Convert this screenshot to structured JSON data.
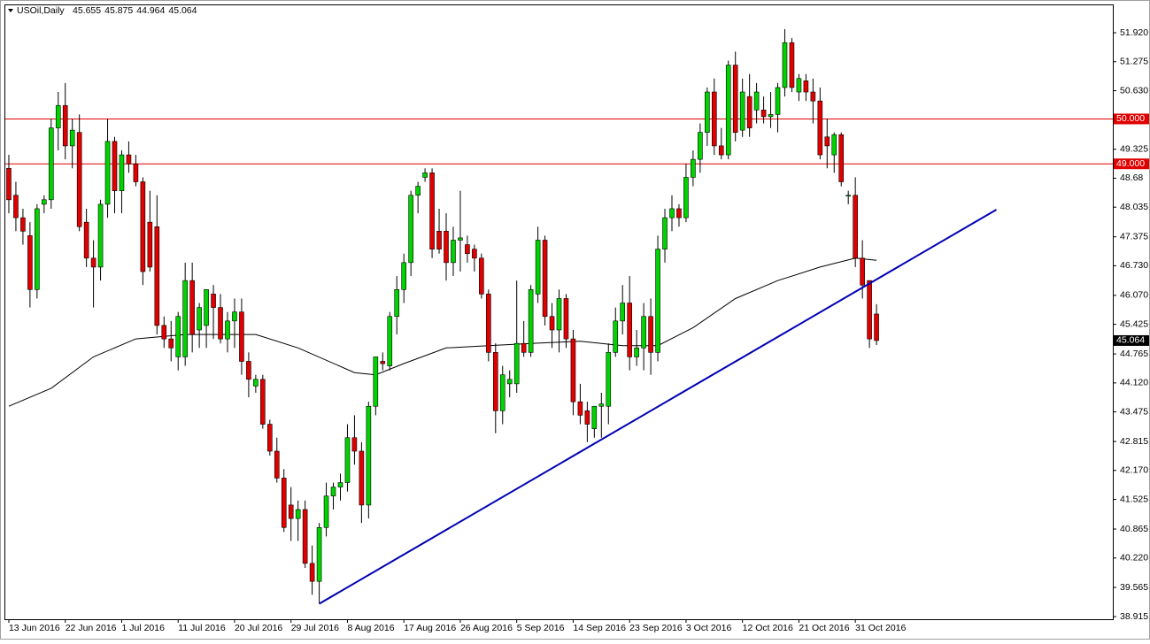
{
  "header": {
    "symbol": "USOil,Daily",
    "values": [
      45.655,
      45.875,
      44.964,
      45.064
    ]
  },
  "chart_data": {
    "type": "candlestick",
    "up_color": "#00d400",
    "down_color": "#e00000",
    "wick_color": "#000000",
    "categories": [
      "13 Jun 2016",
      null,
      null,
      null,
      null,
      null,
      null,
      null,
      "22 Jun 2016",
      null,
      null,
      null,
      null,
      null,
      null,
      null,
      "1 Jul 2016",
      null,
      null,
      null,
      null,
      null,
      null,
      null,
      "11 Jul 2016",
      null,
      null,
      null,
      null,
      null,
      null,
      null,
      "20 Jul 2016",
      null,
      null,
      null,
      null,
      null,
      null,
      null,
      "29 Jul 2016",
      null,
      null,
      null,
      null,
      null,
      null,
      null,
      "8 Aug 2016",
      null,
      null,
      null,
      null,
      null,
      null,
      null,
      "17 Aug 2016",
      null,
      null,
      null,
      null,
      null,
      null,
      null,
      "26 Aug 2016",
      null,
      null,
      null,
      null,
      null,
      null,
      null,
      "5 Sep 2016",
      null,
      null,
      null,
      null,
      null,
      null,
      null,
      "14 Sep 2016",
      null,
      null,
      null,
      null,
      null,
      null,
      null,
      "23 Sep 2016",
      null,
      null,
      null,
      null,
      null,
      null,
      null,
      "3 Oct 2016",
      null,
      null,
      null,
      null,
      null,
      null,
      null,
      "12 Oct 2016",
      null,
      null,
      null,
      null,
      null,
      null,
      null,
      "21 Oct 2016",
      null,
      null,
      null,
      null,
      null,
      null,
      null,
      "31 Oct 2016",
      null,
      null,
      null
    ],
    "ohlc": [
      [
        48.9,
        49.2,
        47.9,
        48.2
      ],
      [
        48.3,
        48.6,
        47.5,
        47.8
      ],
      [
        47.8,
        48.0,
        47.2,
        47.5
      ],
      [
        47.4,
        47.7,
        45.8,
        46.2
      ],
      [
        46.2,
        48.1,
        46.0,
        48.0
      ],
      [
        48.1,
        48.3,
        47.9,
        48.2
      ],
      [
        48.2,
        50.0,
        48.0,
        49.8
      ],
      [
        49.8,
        50.6,
        49.3,
        50.3
      ],
      [
        50.3,
        50.8,
        49.1,
        49.4
      ],
      [
        49.4,
        50.0,
        48.9,
        49.75
      ],
      [
        49.7,
        50.1,
        47.5,
        47.6
      ],
      [
        47.7,
        48.0,
        46.7,
        46.9
      ],
      [
        46.9,
        47.3,
        45.8,
        46.7
      ],
      [
        46.7,
        48.2,
        46.4,
        48.1
      ],
      [
        48.1,
        50.0,
        47.8,
        49.5
      ],
      [
        49.5,
        49.6,
        47.9,
        48.4
      ],
      [
        48.4,
        49.3,
        47.9,
        49.2
      ],
      [
        49.2,
        49.5,
        48.8,
        49.0
      ],
      [
        49.0,
        49.2,
        48.5,
        48.6
      ],
      [
        48.6,
        48.7,
        46.3,
        46.6
      ],
      [
        47.7,
        48.4,
        46.6,
        46.7
      ],
      [
        47.6,
        48.3,
        45.2,
        45.4
      ],
      [
        45.4,
        45.6,
        44.9,
        45.1
      ],
      [
        45.1,
        45.5,
        44.6,
        44.9
      ],
      [
        44.7,
        45.7,
        44.4,
        45.6
      ],
      [
        44.7,
        46.8,
        44.5,
        46.4
      ],
      [
        46.4,
        46.8,
        44.8,
        45.2
      ],
      [
        45.3,
        45.9,
        44.9,
        45.8
      ],
      [
        45.4,
        46.2,
        44.9,
        46.2
      ],
      [
        46.1,
        46.3,
        45.1,
        45.8
      ],
      [
        45.8,
        46.1,
        45.0,
        45.1
      ],
      [
        45.1,
        45.7,
        44.8,
        45.5
      ],
      [
        45.5,
        46.0,
        44.9,
        45.7
      ],
      [
        45.7,
        46.0,
        44.3,
        44.6
      ],
      [
        44.6,
        44.8,
        43.8,
        44.2
      ],
      [
        44.05,
        44.3,
        43.9,
        44.2
      ],
      [
        44.2,
        44.3,
        43.1,
        43.2
      ],
      [
        43.2,
        43.3,
        42.5,
        42.6
      ],
      [
        42.6,
        42.9,
        41.9,
        42.0
      ],
      [
        42.0,
        42.2,
        40.8,
        40.9
      ],
      [
        41.4,
        41.8,
        40.6,
        41.1
      ],
      [
        41.1,
        41.5,
        40.6,
        41.3
      ],
      [
        41.3,
        41.5,
        40.0,
        40.1
      ],
      [
        40.1,
        40.5,
        39.4,
        39.7
      ],
      [
        39.7,
        41.0,
        39.2,
        40.9
      ],
      [
        40.9,
        41.9,
        40.7,
        41.6
      ],
      [
        41.6,
        41.9,
        41.3,
        41.8
      ],
      [
        41.8,
        42.1,
        41.5,
        41.9
      ],
      [
        41.9,
        43.2,
        41.7,
        42.9
      ],
      [
        42.9,
        43.4,
        42.3,
        42.6
      ],
      [
        42.6,
        42.8,
        41.0,
        41.4
      ],
      [
        41.4,
        43.7,
        41.1,
        43.6
      ],
      [
        43.6,
        44.7,
        43.4,
        44.7
      ],
      [
        44.6,
        44.8,
        44.4,
        44.55
      ],
      [
        44.5,
        45.7,
        44.4,
        45.6
      ],
      [
        45.6,
        46.5,
        45.2,
        46.2
      ],
      [
        46.2,
        47.0,
        45.9,
        46.8
      ],
      [
        46.8,
        48.4,
        46.5,
        48.3
      ],
      [
        48.3,
        48.6,
        47.9,
        48.5
      ],
      [
        48.7,
        48.9,
        48.6,
        48.8
      ],
      [
        48.8,
        48.9,
        46.9,
        47.1
      ],
      [
        47.5,
        48.0,
        47.0,
        47.1
      ],
      [
        47.5,
        47.9,
        46.4,
        46.8
      ],
      [
        46.8,
        47.6,
        46.5,
        47.3
      ],
      [
        47.3,
        48.4,
        46.6,
        47.35
      ],
      [
        47.2,
        47.4,
        46.8,
        47.0
      ],
      [
        47.1,
        47.2,
        46.6,
        46.9
      ],
      [
        46.9,
        47.0,
        46.0,
        46.1
      ],
      [
        46.1,
        46.2,
        44.6,
        44.8
      ],
      [
        44.8,
        45.0,
        43.0,
        43.5
      ],
      [
        43.5,
        44.5,
        43.2,
        44.3
      ],
      [
        44.1,
        44.4,
        43.8,
        44.2
      ],
      [
        44.1,
        46.4,
        43.9,
        45.0
      ],
      [
        45.0,
        45.5,
        44.7,
        44.8
      ],
      [
        44.8,
        46.3,
        44.7,
        46.2
      ],
      [
        46.1,
        47.6,
        45.9,
        47.3
      ],
      [
        47.3,
        47.4,
        45.4,
        45.6
      ],
      [
        45.6,
        45.9,
        44.9,
        45.3
      ],
      [
        45.3,
        46.2,
        44.8,
        46.0
      ],
      [
        46.0,
        46.1,
        44.9,
        45.1
      ],
      [
        45.1,
        45.3,
        43.4,
        43.7
      ],
      [
        43.7,
        44.1,
        43.2,
        43.4
      ],
      [
        43.5,
        43.7,
        42.8,
        43.2
      ],
      [
        43.1,
        43.6,
        42.9,
        43.6
      ],
      [
        43.6,
        43.9,
        42.9,
        43.65
      ],
      [
        43.6,
        45.0,
        43.2,
        44.8
      ],
      [
        44.8,
        45.8,
        44.7,
        45.5
      ],
      [
        45.5,
        46.3,
        45.2,
        45.9
      ],
      [
        45.9,
        46.5,
        44.4,
        44.7
      ],
      [
        44.7,
        45.3,
        44.5,
        44.9
      ],
      [
        44.9,
        45.9,
        44.4,
        45.6
      ],
      [
        45.6,
        46.0,
        44.3,
        44.8
      ],
      [
        44.8,
        47.4,
        44.6,
        47.1
      ],
      [
        47.1,
        48.0,
        46.8,
        47.8
      ],
      [
        47.8,
        48.3,
        47.5,
        48.0
      ],
      [
        48.0,
        48.1,
        47.6,
        47.8
      ],
      [
        47.8,
        49.0,
        47.7,
        48.7
      ],
      [
        48.7,
        49.3,
        48.5,
        49.1
      ],
      [
        49.1,
        49.9,
        48.8,
        49.7
      ],
      [
        49.7,
        50.7,
        49.4,
        50.6
      ],
      [
        50.6,
        50.9,
        49.2,
        49.4
      ],
      [
        49.4,
        49.8,
        49.1,
        49.2
      ],
      [
        49.2,
        51.3,
        49.1,
        51.2
      ],
      [
        51.2,
        51.5,
        49.5,
        49.7
      ],
      [
        49.75,
        50.9,
        49.6,
        50.6
      ],
      [
        50.5,
        51.0,
        49.6,
        49.8
      ],
      [
        50.2,
        50.8,
        49.9,
        50.6
      ],
      [
        50.2,
        50.5,
        49.9,
        50.05
      ],
      [
        50.05,
        50.6,
        49.8,
        50.1
      ],
      [
        50.1,
        50.8,
        49.7,
        50.7
      ],
      [
        50.7,
        52.0,
        50.5,
        51.7
      ],
      [
        51.7,
        51.8,
        50.6,
        50.7
      ],
      [
        50.6,
        51.0,
        50.4,
        50.9
      ],
      [
        50.85,
        51.0,
        50.4,
        50.6
      ],
      [
        50.6,
        50.9,
        49.9,
        50.4
      ],
      [
        50.4,
        50.7,
        49.1,
        49.2
      ],
      [
        49.6,
        50.0,
        48.9,
        49.4
      ],
      [
        49.2,
        49.7,
        48.8,
        49.65
      ],
      [
        49.65,
        49.7,
        48.5,
        48.6
      ],
      [
        48.3,
        48.4,
        48.1,
        48.3
      ],
      [
        48.3,
        48.7,
        46.7,
        46.9
      ],
      [
        46.9,
        47.3,
        46.0,
        46.3
      ],
      [
        46.4,
        46.4,
        44.9,
        45.1
      ],
      [
        45.655,
        45.875,
        44.964,
        45.064
      ]
    ],
    "moving_average": {
      "color": "#000000",
      "x": [
        0,
        6,
        12,
        18,
        25,
        35,
        41,
        49,
        52,
        56,
        62,
        68,
        74,
        81,
        87,
        92,
        97,
        103,
        109,
        115,
        120,
        123
      ],
      "values": [
        43.6,
        44.0,
        44.7,
        45.1,
        45.2,
        45.2,
        44.9,
        44.35,
        44.3,
        44.55,
        44.9,
        44.95,
        45.0,
        45.05,
        44.95,
        44.95,
        45.35,
        46.0,
        46.4,
        46.7,
        46.9,
        46.85
      ]
    },
    "trendline": {
      "color": "#0000b4",
      "x": [
        44,
        140
      ],
      "values": [
        39.2,
        47.98
      ]
    },
    "hlines": {
      "color": "#e00000",
      "levels": [
        {
          "value": 50,
          "label": "50.000"
        },
        {
          "value": 49,
          "label": "49.000"
        }
      ]
    },
    "last_price": 45.064,
    "xlim": [
      -0.625,
      156.5
    ],
    "ylim": [
      38.856,
      52.551
    ],
    "yticks": [
      {
        "value": 51.92,
        "label": "51.920"
      },
      51.275,
      {
        "value": 50.63,
        "label": "50.630"
      },
      49.325,
      48.68,
      48.035,
      47.375,
      {
        "value": 46.73,
        "label": "46.730"
      },
      {
        "value": 46.07,
        "label": "46.070"
      },
      45.425,
      44.765,
      {
        "value": 44.12,
        "label": "44.120"
      },
      43.475,
      42.815,
      {
        "value": 42.17,
        "label": "42.170"
      },
      41.525,
      40.865,
      {
        "value": 40.22,
        "label": "40.220"
      },
      39.565,
      38.915
    ]
  }
}
